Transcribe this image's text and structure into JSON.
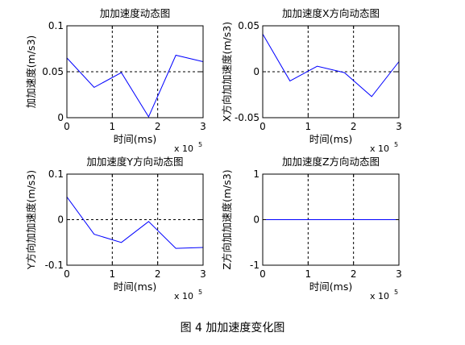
{
  "figure_caption": "图 4  加加速度变化图",
  "chart_data": [
    {
      "type": "line",
      "title": "加加速度动态图",
      "ylabel": "加加速度(m/s3)",
      "xlabel": "时间(ms)",
      "x_multiplier": "x 10",
      "x_exponent": "5",
      "xlim": [
        0,
        3
      ],
      "ylim": [
        0,
        0.1
      ],
      "xticks": [
        0,
        1,
        2,
        3
      ],
      "xtick_labels": [
        "0",
        "1",
        "2",
        "3"
      ],
      "yticks": [
        0,
        0.05,
        0.1
      ],
      "ytick_labels": [
        "0",
        "0.05",
        "0.1"
      ],
      "grid": "dotted",
      "line_color": "#0000ff",
      "series": [
        {
          "x": [
            0,
            0.6,
            1.2,
            1.8,
            2.4,
            3.0
          ],
          "y": [
            0.065,
            0.033,
            0.049,
            0.001,
            0.068,
            0.061
          ]
        }
      ]
    },
    {
      "type": "line",
      "title": "加加速度X方向动态图",
      "ylabel": "X方向加加速度(m/s3)",
      "xlabel": "时间(ms)",
      "x_multiplier": "x 10",
      "x_exponent": "5",
      "xlim": [
        0,
        3
      ],
      "ylim": [
        -0.05,
        0.05
      ],
      "xticks": [
        0,
        1,
        2,
        3
      ],
      "xtick_labels": [
        "0",
        "1",
        "2",
        "3"
      ],
      "yticks": [
        -0.05,
        0,
        0.05
      ],
      "ytick_labels": [
        "-0.05",
        "0",
        "0.05"
      ],
      "grid": "dotted",
      "line_color": "#0000ff",
      "series": [
        {
          "x": [
            0,
            0.6,
            1.2,
            1.8,
            2.4,
            3.0
          ],
          "y": [
            0.041,
            -0.01,
            0.006,
            -0.001,
            -0.027,
            0.011
          ]
        }
      ]
    },
    {
      "type": "line",
      "title": "加加速度Y方向动态图",
      "ylabel": "Y方向加加速度(m/s3)",
      "xlabel": "时间(ms)",
      "x_multiplier": "x 10",
      "x_exponent": "5",
      "xlim": [
        0,
        3
      ],
      "ylim": [
        -0.1,
        0.1
      ],
      "xticks": [
        0,
        1,
        2,
        3
      ],
      "xtick_labels": [
        "0",
        "1",
        "2",
        "3"
      ],
      "yticks": [
        -0.1,
        0,
        0.1
      ],
      "ytick_labels": [
        "-0.1",
        "0",
        "0.1"
      ],
      "grid": "dotted",
      "line_color": "#0000ff",
      "series": [
        {
          "x": [
            0,
            0.6,
            1.2,
            1.8,
            2.4,
            3.0
          ],
          "y": [
            0.05,
            -0.032,
            -0.05,
            -0.004,
            -0.063,
            -0.061
          ]
        }
      ]
    },
    {
      "type": "line",
      "title": "加加速度Z方向动态图",
      "ylabel": "Z方向加加速度(m/s3)",
      "xlabel": "时间(ms)",
      "x_multiplier": "x 10",
      "x_exponent": "5",
      "xlim": [
        0,
        3
      ],
      "ylim": [
        -1,
        1
      ],
      "xticks": [
        0,
        1,
        2,
        3
      ],
      "xtick_labels": [
        "0",
        "1",
        "2",
        "3"
      ],
      "yticks": [
        -1,
        0,
        1
      ],
      "ytick_labels": [
        "-1",
        "0",
        "1"
      ],
      "grid": "dotted",
      "line_color": "#0000ff",
      "series": [
        {
          "x": [
            0,
            0.6,
            1.2,
            1.8,
            2.4,
            3.0
          ],
          "y": [
            0,
            0,
            0,
            0,
            0,
            0
          ]
        }
      ]
    }
  ]
}
